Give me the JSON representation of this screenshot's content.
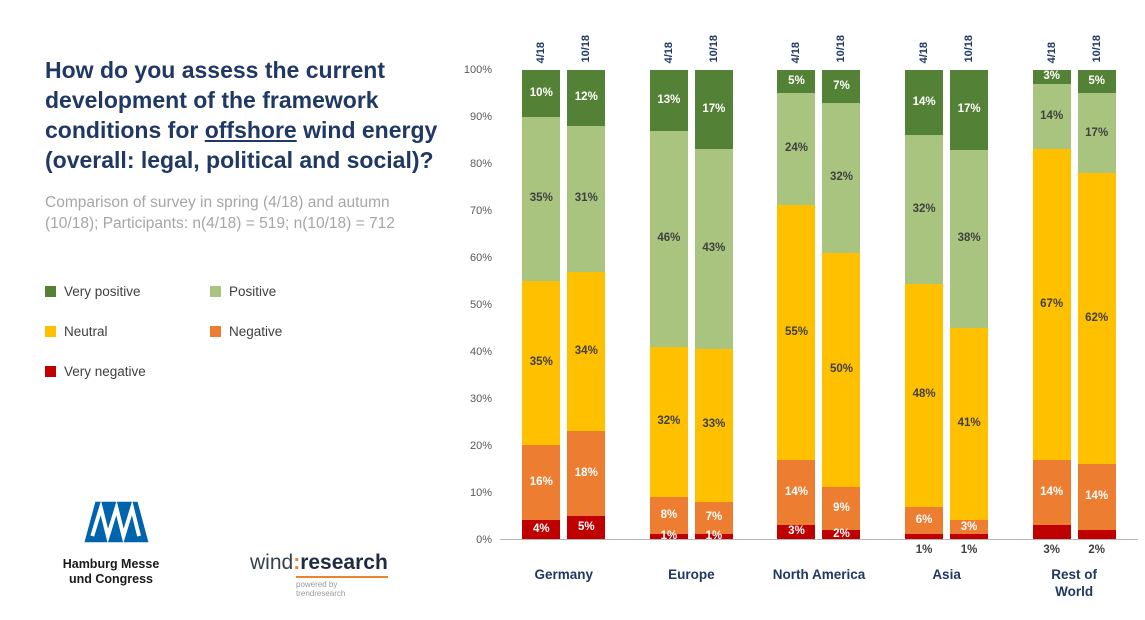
{
  "left_panel": {
    "title_part1": "How do you assess the current development of the framework conditions for ",
    "title_underlined": "offshore",
    "title_part2": " wind energy (overall: legal, political and social)?",
    "subtitle": "Comparison of survey in spring (4/18) and autumn (10/18); Participants: n(4/18) = 519; n(10/18) = 712"
  },
  "logos": {
    "hamburg_messe_line1": "Hamburg Messe",
    "hamburg_messe_line2": "und Congress",
    "hamburg_messe_blue": "#0063ad",
    "windresearch_part1": "wind",
    "windresearch_colon": ":",
    "windresearch_part2": "research",
    "windresearch_tagline": "powered by trendresearch",
    "windresearch_accent": "#e8862e"
  },
  "chart_data": {
    "type": "bar",
    "subtype": "stacked-100",
    "title": "",
    "xlabel": "",
    "ylabel": "",
    "ylim": [
      0,
      100
    ],
    "grid": false,
    "legend_position": "left-panel",
    "y_ticks": [
      "100%",
      "90%",
      "80%",
      "70%",
      "60%",
      "50%",
      "40%",
      "30%",
      "20%",
      "10%",
      "0%"
    ],
    "series_order": [
      "Very positive",
      "Positive",
      "Neutral",
      "Negative",
      "Very negative"
    ],
    "series_colors": {
      "Very positive": "#538135",
      "Positive": "#a9c47f",
      "Neutral": "#ffc000",
      "Negative": "#ed7d31",
      "Very negative": "#c00000"
    },
    "groups": [
      {
        "label": "Germany",
        "bars": [
          {
            "period": "4/18",
            "values": {
              "Very positive": 10,
              "Positive": 35,
              "Neutral": 35,
              "Negative": 16,
              "Very negative": 4
            }
          },
          {
            "period": "10/18",
            "values": {
              "Very positive": 12,
              "Positive": 31,
              "Neutral": 34,
              "Negative": 18,
              "Very negative": 5
            }
          }
        ]
      },
      {
        "label": "Europe",
        "bars": [
          {
            "period": "4/18",
            "values": {
              "Very positive": 13,
              "Positive": 46,
              "Neutral": 32,
              "Negative": 8,
              "Very negative": 1
            }
          },
          {
            "period": "10/18",
            "values": {
              "Very positive": 17,
              "Positive": 43,
              "Neutral": 33,
              "Negative": 7,
              "Very negative": 1
            }
          }
        ]
      },
      {
        "label": "North America",
        "bars": [
          {
            "period": "4/18",
            "values": {
              "Very positive": 5,
              "Positive": 24,
              "Neutral": 55,
              "Negative": 14,
              "Very negative": 3
            }
          },
          {
            "period": "10/18",
            "values": {
              "Very positive": 7,
              "Positive": 32,
              "Neutral": 50,
              "Negative": 9,
              "Very negative": 2
            }
          }
        ]
      },
      {
        "label": "Asia",
        "bars": [
          {
            "period": "4/18",
            "values": {
              "Very positive": 14,
              "Positive": 32,
              "Neutral": 48,
              "Negative": 6,
              "Very negative": 1
            },
            "vn_label_below": true
          },
          {
            "period": "10/18",
            "values": {
              "Very positive": 17,
              "Positive": 38,
              "Neutral": 41,
              "Negative": 3,
              "Very negative": 1
            },
            "vn_label_below": true
          }
        ]
      },
      {
        "label": "Rest of\nWorld",
        "bars": [
          {
            "period": "4/18",
            "values": {
              "Very positive": 3,
              "Positive": 14,
              "Neutral": 67,
              "Negative": 14,
              "Very negative": 3
            },
            "vn_label_below": true
          },
          {
            "period": "10/18",
            "values": {
              "Very positive": 5,
              "Positive": 17,
              "Neutral": 62,
              "Negative": 14,
              "Very negative": 2
            },
            "vn_label_below": true
          }
        ]
      }
    ]
  }
}
